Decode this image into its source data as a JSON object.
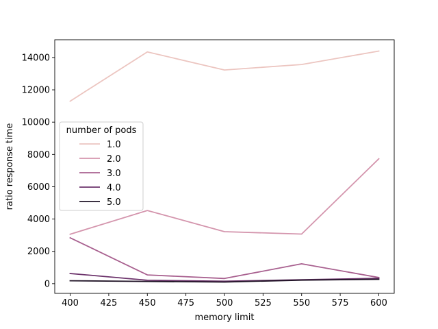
{
  "chart_data": {
    "type": "line",
    "title": "",
    "xlabel": "memory limit",
    "ylabel": "ratio response time",
    "x": [
      400,
      450,
      500,
      550,
      600
    ],
    "xlim": [
      390,
      610
    ],
    "ylim": [
      -600,
      15100
    ],
    "x_ticks": [
      400,
      425,
      450,
      475,
      500,
      525,
      550,
      575,
      600
    ],
    "y_ticks": [
      0,
      2000,
      4000,
      6000,
      8000,
      10000,
      12000,
      14000
    ],
    "grid": false,
    "legend": {
      "title": "number of pods",
      "placement": "center-left"
    },
    "series": [
      {
        "name": "1.0",
        "color": "#ecc5c0",
        "values": [
          11300,
          14350,
          13230,
          13570,
          14400
        ]
      },
      {
        "name": "2.0",
        "color": "#d495ad",
        "values": [
          3060,
          4530,
          3220,
          3070,
          7730
        ]
      },
      {
        "name": "3.0",
        "color": "#a8608f",
        "values": [
          2840,
          540,
          320,
          1230,
          380
        ]
      },
      {
        "name": "4.0",
        "color": "#6c336b",
        "values": [
          630,
          210,
          150,
          240,
          330
        ]
      },
      {
        "name": "5.0",
        "color": "#211427",
        "values": [
          180,
          140,
          100,
          220,
          270
        ]
      }
    ]
  }
}
